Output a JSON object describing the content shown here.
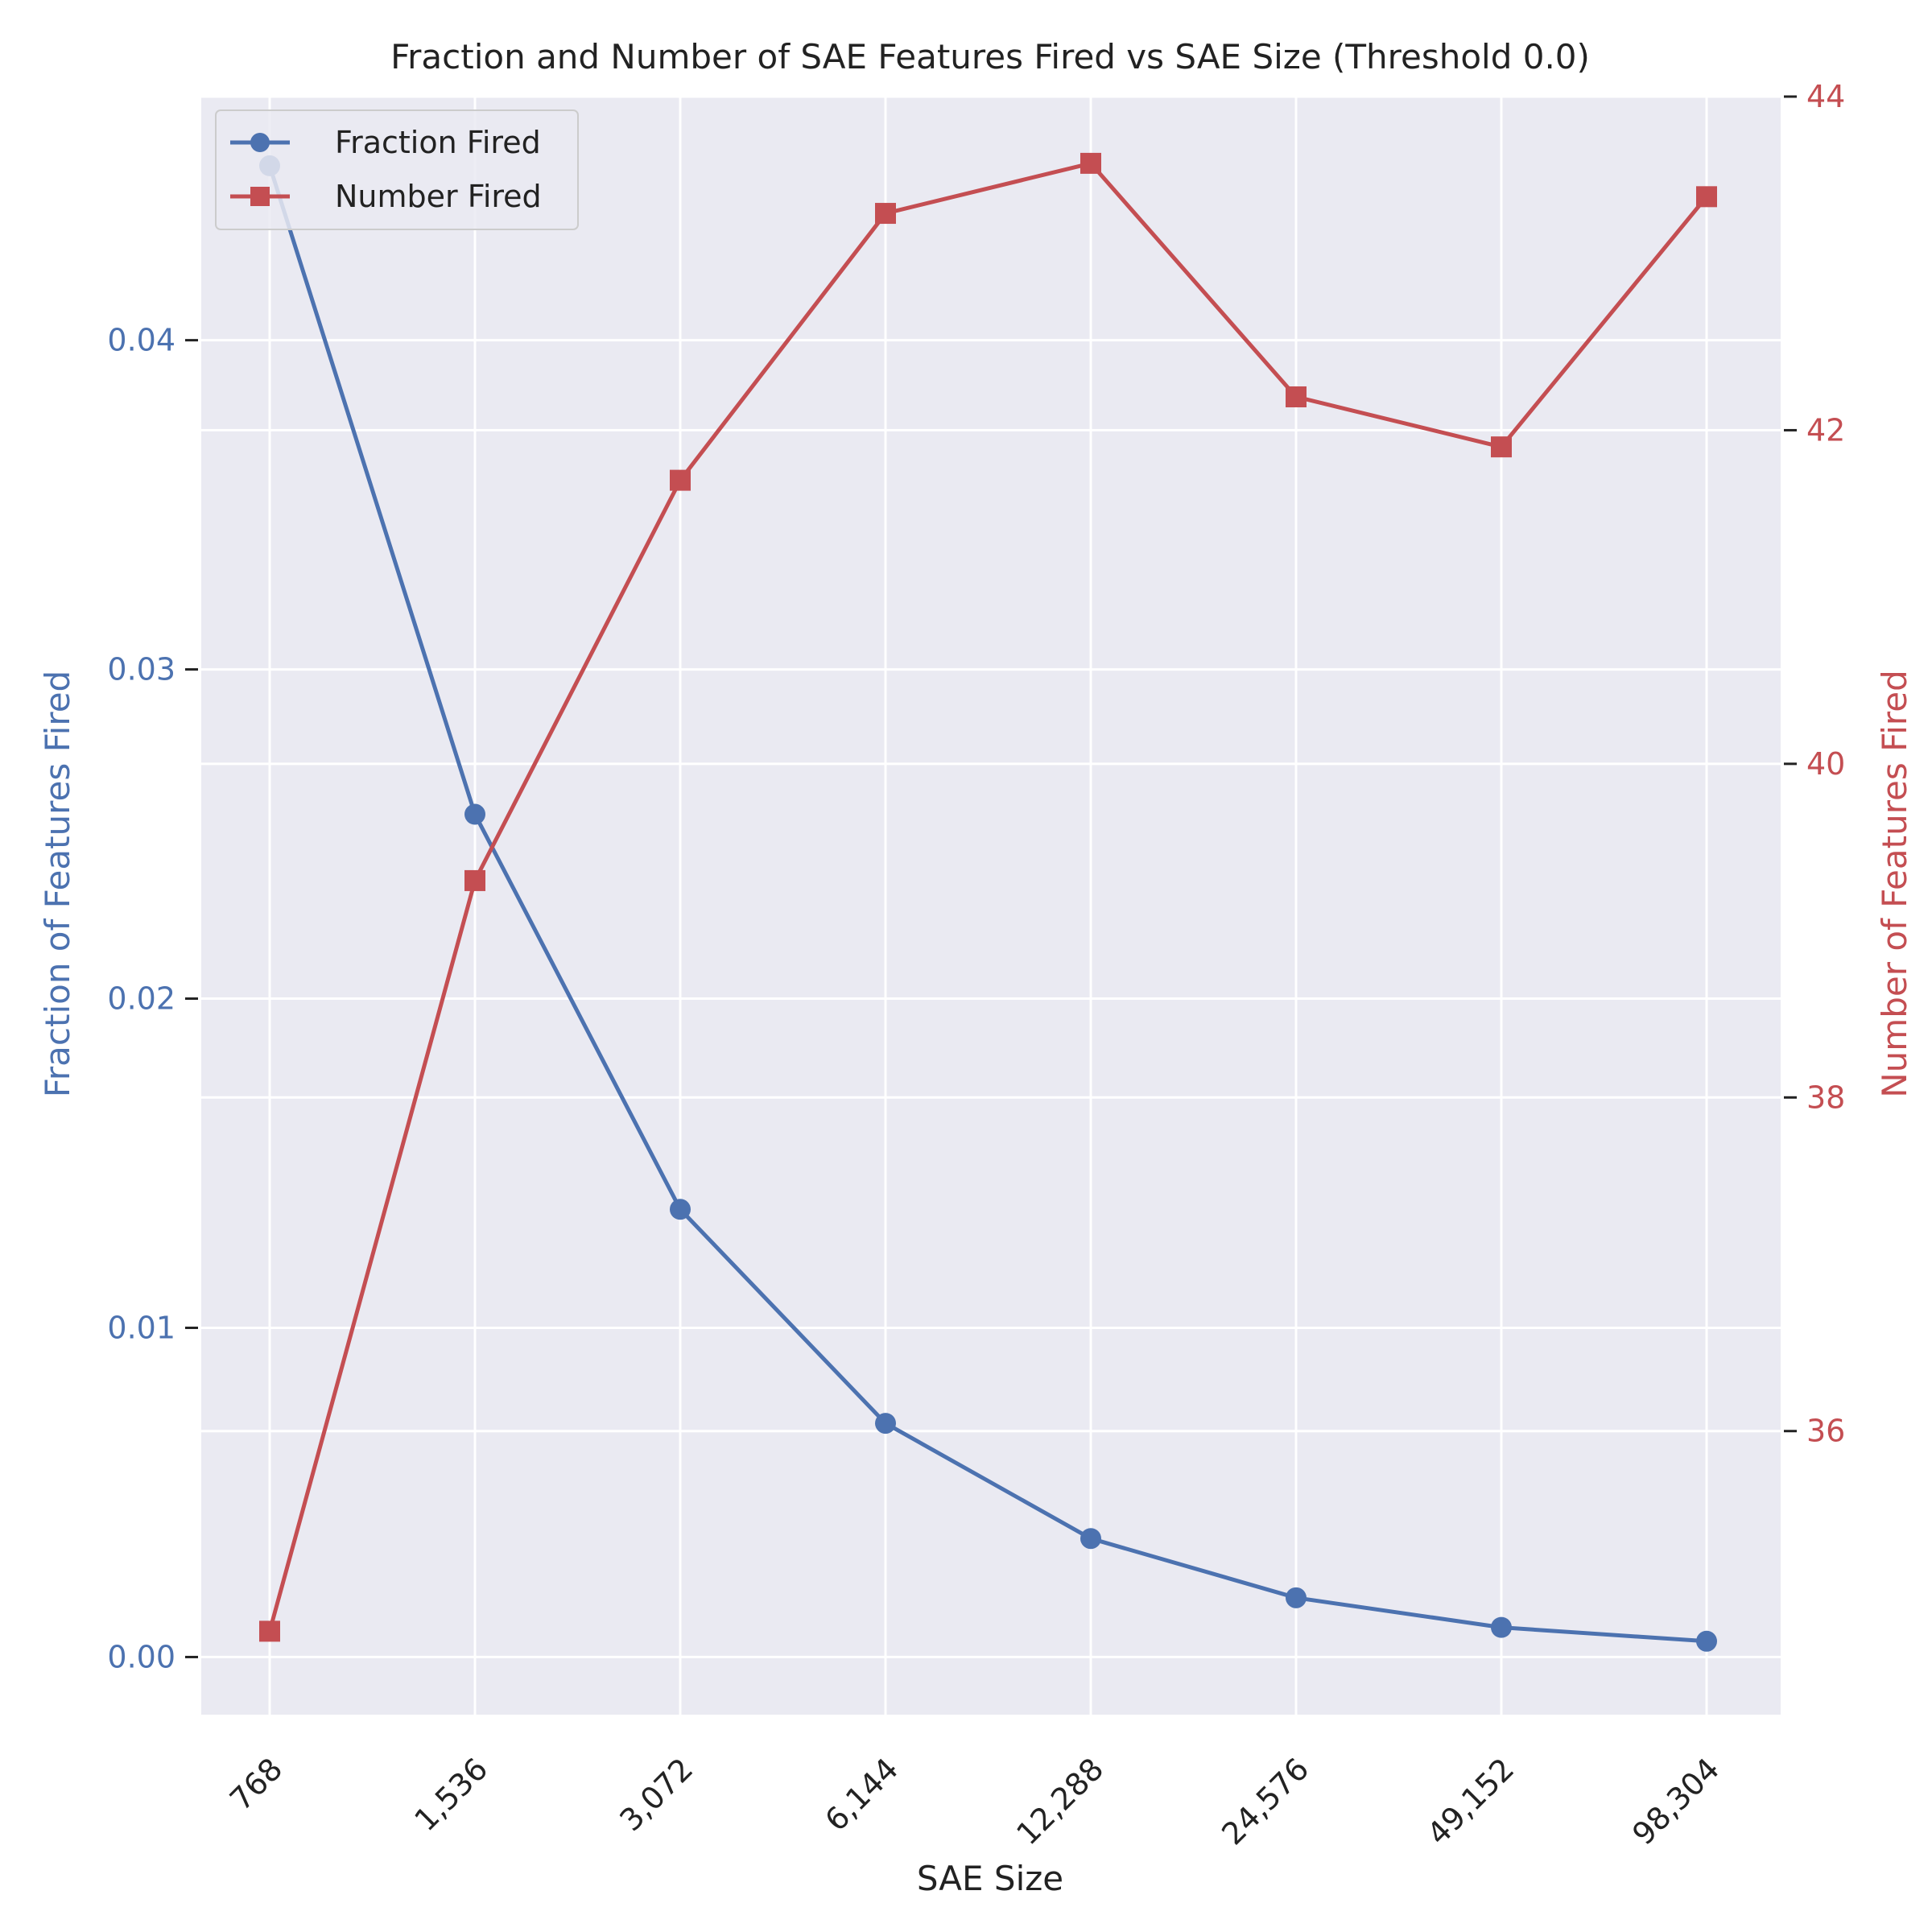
{
  "chart_data": {
    "type": "line",
    "title": "Fraction and Number of SAE Features Fired vs SAE Size (Threshold 0.0)",
    "xlabel": "SAE Size",
    "ylabel_left": "Fraction of Features Fired",
    "ylabel_right": "Number of Features Fired",
    "categories": [
      "768",
      "1,536",
      "3,072",
      "6,144",
      "12,288",
      "24,576",
      "49,152",
      "98,304"
    ],
    "y_left_ticks": [
      0.0,
      0.01,
      0.02,
      0.03,
      0.04
    ],
    "y_left_tick_labels": [
      "0.00",
      "0.01",
      "0.02",
      "0.03",
      "0.04"
    ],
    "y_right_ticks": [
      36,
      38,
      40,
      42,
      44
    ],
    "y_right_tick_labels": [
      "36",
      "38",
      "40",
      "42",
      "44"
    ],
    "ylim_left": [
      -0.00175,
      0.0474
    ],
    "ylim_right": [
      34.3,
      44.0
    ],
    "grid": true,
    "legend_position": "upper-left",
    "series": [
      {
        "name": "Fraction Fired",
        "axis": "left",
        "marker": "circle",
        "color": "#4c72b0",
        "values": [
          0.0453,
          0.0256,
          0.0136,
          0.0071,
          0.0036,
          0.0018,
          0.0009,
          0.00048
        ]
      },
      {
        "name": "Number Fired",
        "axis": "right",
        "marker": "square",
        "color": "#c44e52",
        "values": [
          34.8,
          39.3,
          41.7,
          43.3,
          43.6,
          42.2,
          41.9,
          43.4
        ]
      }
    ]
  }
}
